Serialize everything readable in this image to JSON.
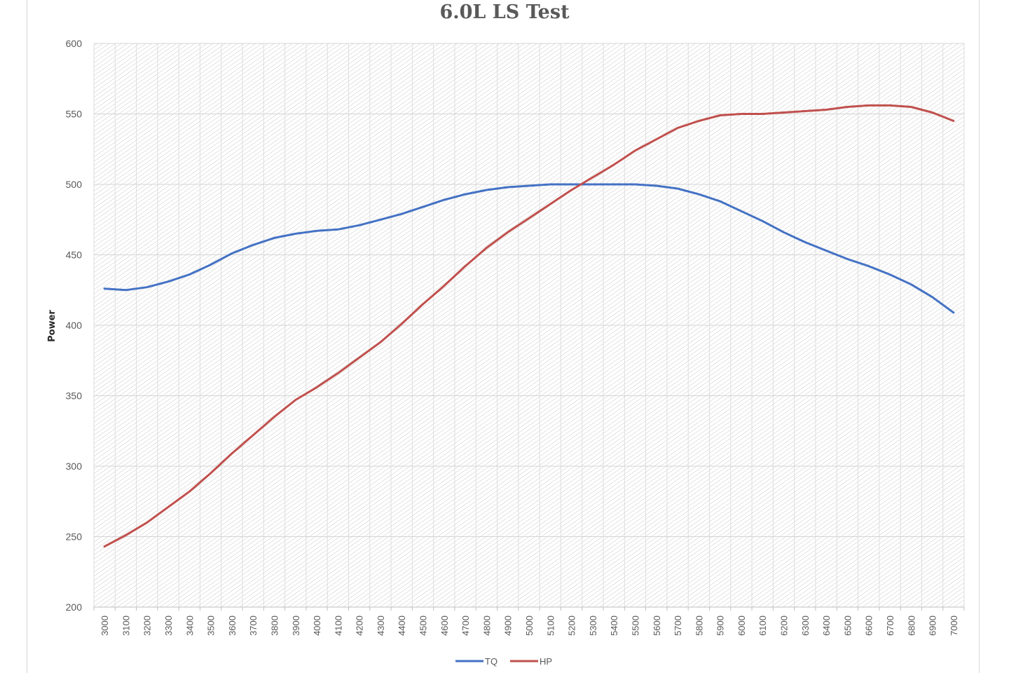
{
  "chart_data": {
    "type": "line",
    "title": "6.0L LS Test",
    "xlabel": "",
    "ylabel": "Power",
    "ylim": [
      200,
      600
    ],
    "yticks": [
      200,
      250,
      300,
      350,
      400,
      450,
      500,
      550,
      600
    ],
    "grid": true,
    "legend_position": "bottom",
    "x": [
      3000,
      3100,
      3200,
      3300,
      3400,
      3500,
      3600,
      3700,
      3800,
      3900,
      4000,
      4100,
      4200,
      4300,
      4400,
      4500,
      4600,
      4700,
      4800,
      4900,
      5000,
      5100,
      5200,
      5300,
      5400,
      5500,
      5600,
      5700,
      5800,
      5900,
      6000,
      6100,
      6200,
      6300,
      6400,
      6500,
      6600,
      6700,
      6800,
      6900,
      7000
    ],
    "series": [
      {
        "name": "TQ",
        "color": "#4472c4",
        "values": [
          426,
          425,
          427,
          431,
          436,
          443,
          451,
          457,
          462,
          465,
          467,
          468,
          471,
          475,
          479,
          484,
          489,
          493,
          496,
          498,
          499,
          500,
          500,
          500,
          500,
          500,
          499,
          497,
          493,
          488,
          481,
          474,
          466,
          459,
          453,
          447,
          442,
          436,
          429,
          420,
          409
        ]
      },
      {
        "name": "HP",
        "color": "#c0504d",
        "values": [
          243,
          251,
          260,
          271,
          282,
          295,
          309,
          322,
          335,
          347,
          356,
          366,
          377,
          388,
          401,
          415,
          428,
          442,
          455,
          466,
          476,
          486,
          496,
          505,
          514,
          524,
          532,
          540,
          545,
          549,
          550,
          550,
          551,
          552,
          553,
          555,
          556,
          556,
          555,
          551,
          545
        ]
      }
    ]
  }
}
